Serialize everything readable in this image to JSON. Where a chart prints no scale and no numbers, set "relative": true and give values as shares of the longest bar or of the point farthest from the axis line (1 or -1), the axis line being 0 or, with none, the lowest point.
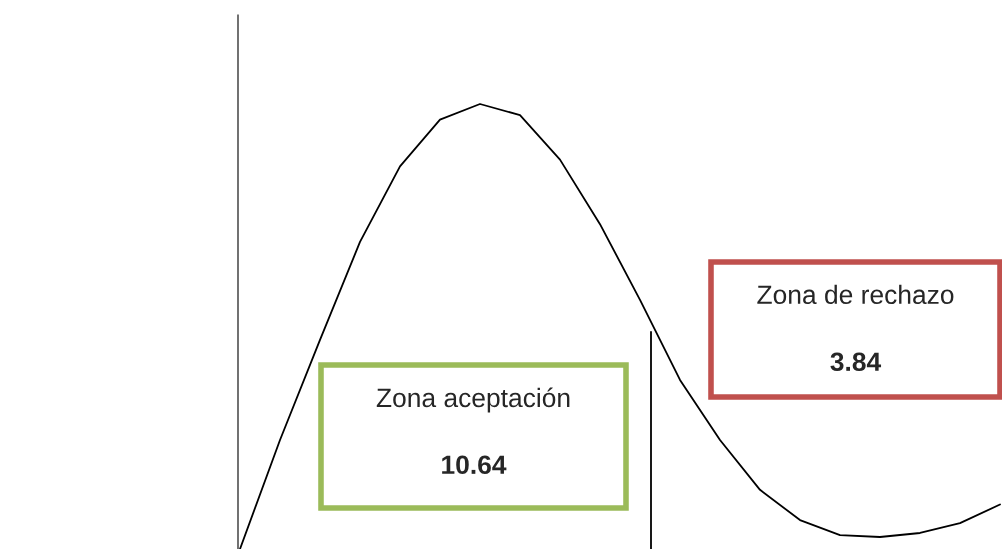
{
  "chart_data": {
    "type": "line",
    "relative": true,
    "categories": [
      null,
      null,
      null,
      null,
      null,
      null,
      null,
      null,
      null,
      null,
      null,
      null,
      null,
      null,
      null,
      null,
      null,
      null,
      null,
      null
    ],
    "series": [
      {
        "color": "#000000",
        "values": [
          0,
          0.245,
          0.47,
          0.69,
          0.86,
          0.965,
          1.0,
          0.975,
          0.875,
          0.73,
          0.56,
          0.38,
          0.245,
          0.133,
          0.065,
          0.031,
          0.027,
          0.036,
          0.058,
          0.1
        ]
      }
    ],
    "annotations": [
      "Zona aceptación",
      "10.64",
      "Zona de rechazo",
      "3.84"
    ],
    "grid": false,
    "legend": false,
    "marker": "none",
    "line_style": "solid"
  }
}
